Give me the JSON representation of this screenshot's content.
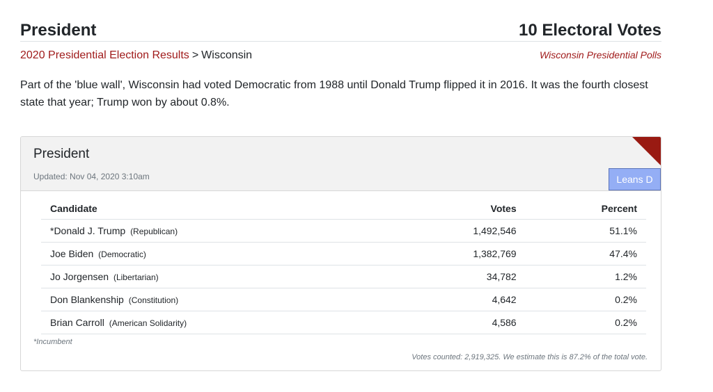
{
  "header": {
    "title": "President",
    "electoral_votes": "10 Electoral Votes"
  },
  "breadcrumb": {
    "parent": "2020 Presidential Election Results",
    "separator": ">",
    "current": "Wisconsin"
  },
  "polls_link": "Wisconsin Presidential Polls",
  "intro": "Part of the 'blue wall', Wisconsin had voted Democratic from 1988 until Donald Trump flipped it in 2016. It was the fourth closest state that year; Trump won by about 0.8%.",
  "card": {
    "title": "President",
    "updated": "Updated: Nov 04, 2020 3:10am",
    "rating": "Leans D",
    "rating_color": "#94aef5",
    "flag_color": "#991a12",
    "columns": {
      "candidate": "Candidate",
      "votes": "Votes",
      "percent": "Percent"
    },
    "rows": [
      {
        "name": "*Donald J. Trump",
        "party": "(Republican)",
        "votes": "1,492,546",
        "percent": "51.1%"
      },
      {
        "name": "Joe Biden",
        "party": "(Democratic)",
        "votes": "1,382,769",
        "percent": "47.4%"
      },
      {
        "name": "Jo Jorgensen",
        "party": "(Libertarian)",
        "votes": "34,782",
        "percent": "1.2%"
      },
      {
        "name": "Don Blankenship",
        "party": "(Constitution)",
        "votes": "4,642",
        "percent": "0.2%"
      },
      {
        "name": "Brian Carroll",
        "party": "(American Solidarity)",
        "votes": "4,586",
        "percent": "0.2%"
      }
    ],
    "incumbent_note": "*Incumbent",
    "votes_counted": "Votes counted: 2,919,325. We estimate this is 87.2% of the total vote."
  }
}
